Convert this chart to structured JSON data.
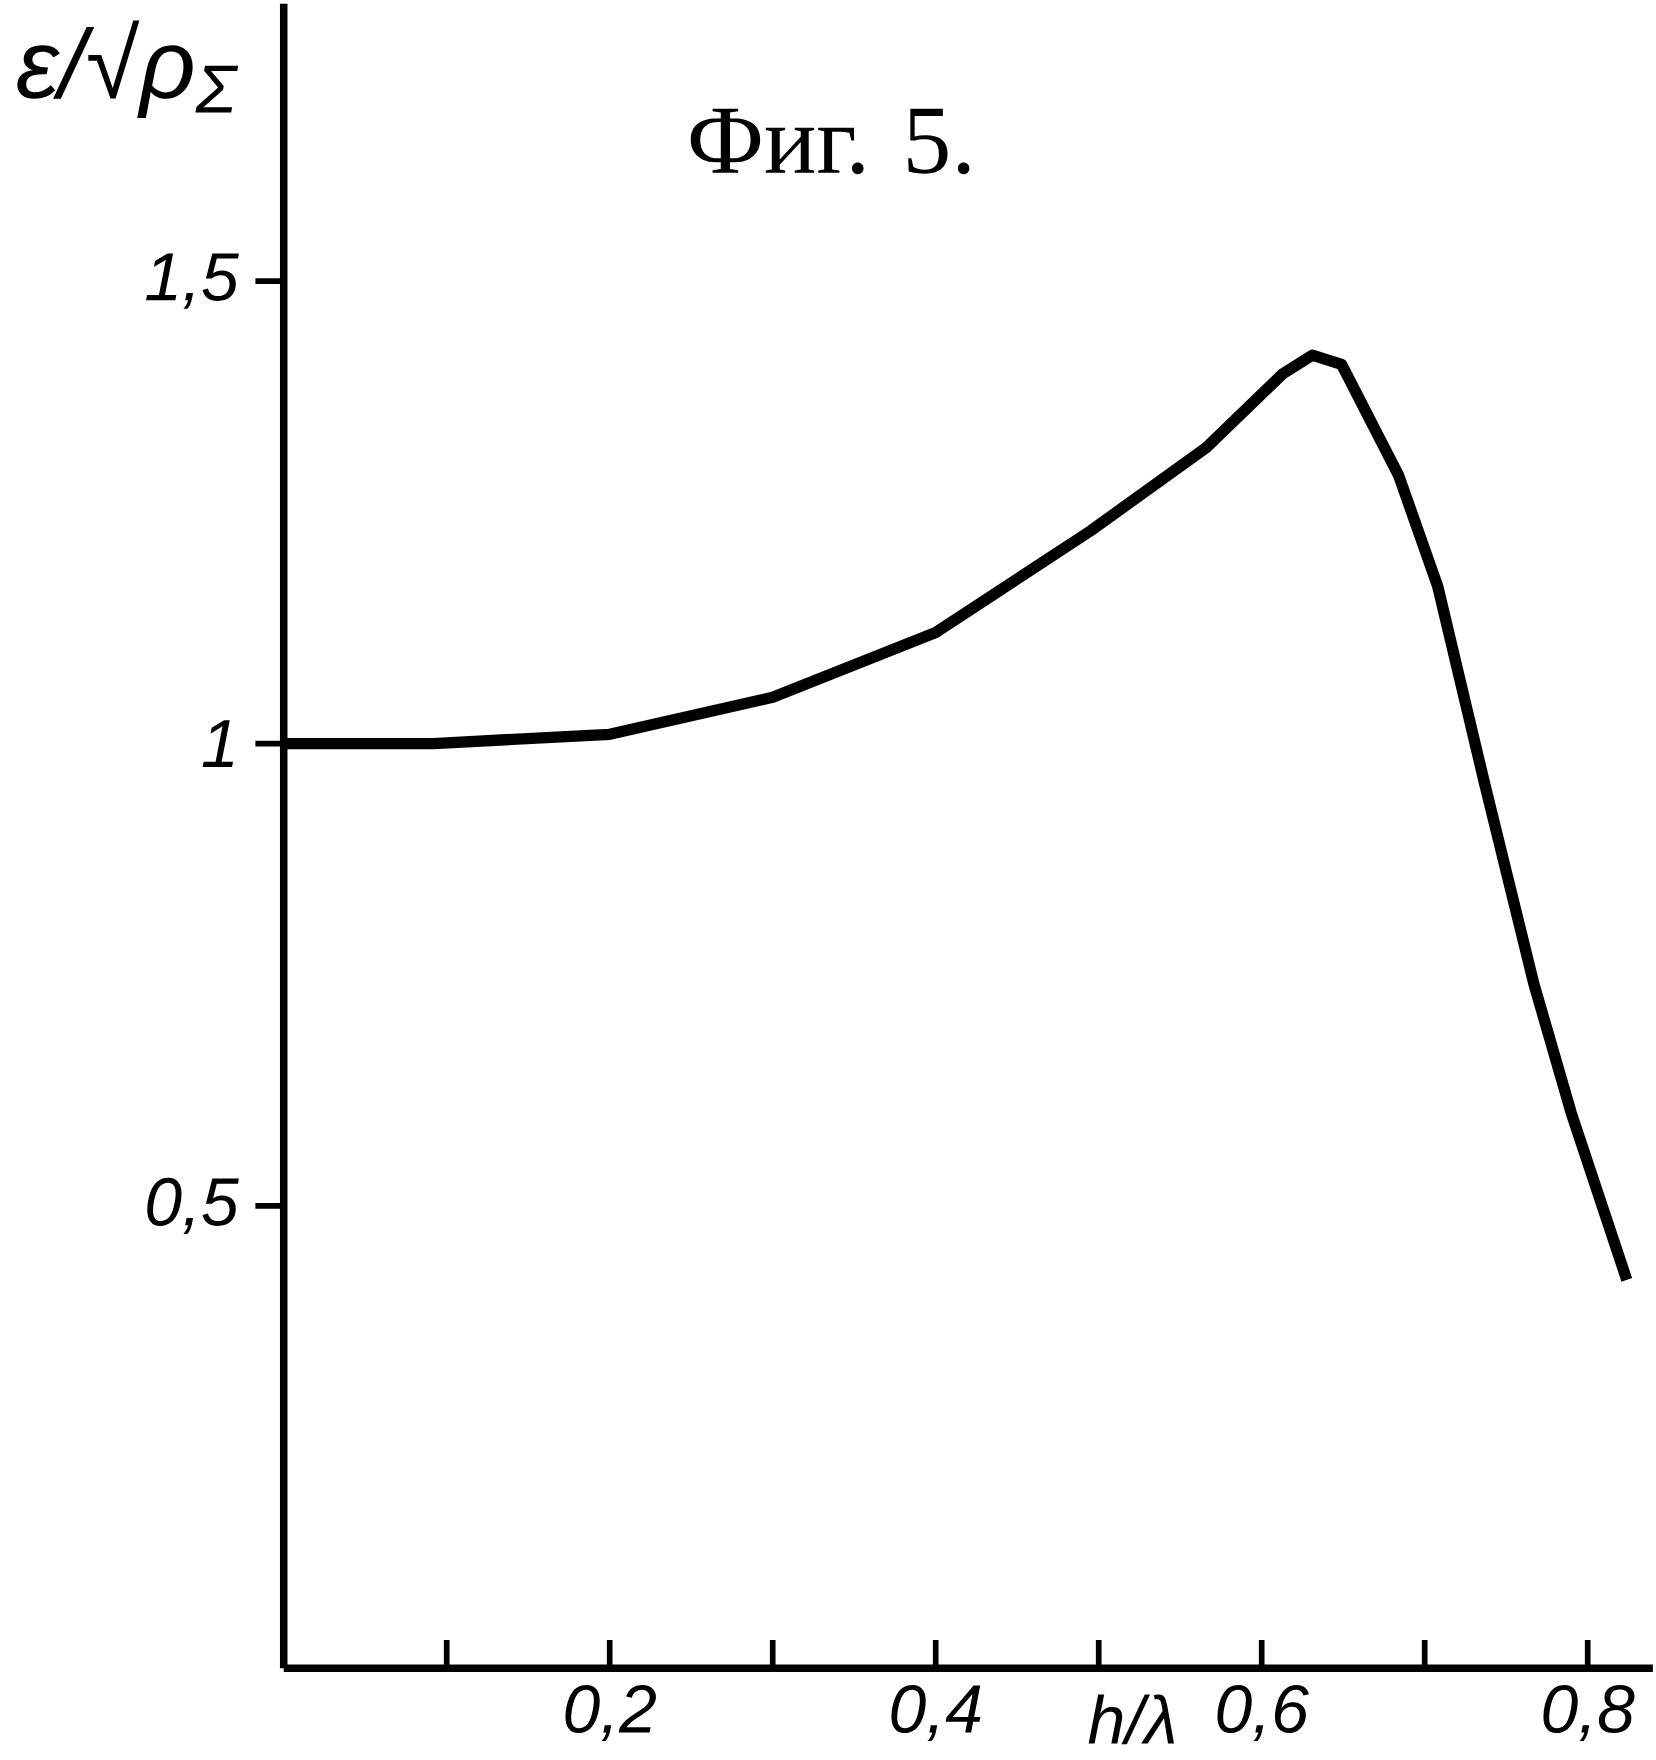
{
  "chart_data": {
    "type": "line",
    "title": "Фиг. 5.",
    "xlabel": "h/λ",
    "ylabel": "ε/√ρ$_{Σ}$",
    "x": [
      0,
      0.092,
      0.2,
      0.3,
      0.4,
      0.495,
      0.566,
      0.613,
      0.631,
      0.649,
      0.684,
      0.708,
      0.737,
      0.767,
      0.79,
      0.824
    ],
    "series": [
      {
        "color": "#000000",
        "values": [
          1.0,
          1.0,
          1.01,
          1.05,
          1.12,
          1.23,
          1.32,
          1.4,
          1.42,
          1.41,
          1.29,
          1.17,
          0.955,
          0.74,
          0.6,
          0.42
        ]
      }
    ],
    "xlim": [
      0,
      0.84
    ],
    "ylim": [
      0,
      1.8
    ],
    "xticks": [
      {
        "value": 0.1,
        "label": null
      },
      {
        "value": 0.2,
        "label": "0,2"
      },
      {
        "value": 0.3,
        "label": null
      },
      {
        "value": 0.4,
        "label": "0,4"
      },
      {
        "value": 0.5,
        "label": null
      },
      {
        "value": 0.6,
        "label": "0,6"
      },
      {
        "value": 0.7,
        "label": null
      },
      {
        "value": 0.8,
        "label": "0,8"
      }
    ],
    "yticks": [
      {
        "value": 0.5,
        "label": "0,5"
      },
      {
        "value": 1,
        "label": "1"
      },
      {
        "value": 1.5,
        "label": "1,5"
      }
    ],
    "grid": false,
    "marker": "none",
    "line_style": "solid"
  }
}
